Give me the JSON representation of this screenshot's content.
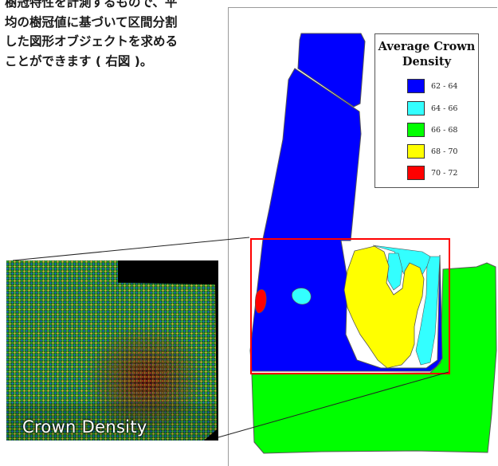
{
  "caption": {
    "lines": [
      "樹冠特性を計測するもので、平",
      "均の樹冠値に基づいて区間分割",
      "した図形オブジェクトを求める",
      "ことができます ( 右図 )。"
    ]
  },
  "legend": {
    "title_line1": "Average Crown",
    "title_line2": "Density",
    "items": [
      {
        "label": "62 - 64",
        "color": "#0000ff"
      },
      {
        "label": "64 - 66",
        "color": "#33ffff"
      },
      {
        "label": "66 - 68",
        "color": "#00ff00"
      },
      {
        "label": "68 - 70",
        "color": "#ffff00"
      },
      {
        "label": "70 - 72",
        "color": "#ff0000"
      }
    ]
  },
  "inset": {
    "label": "Crown Density"
  },
  "colors": {
    "zoom_box": "#ff0000",
    "border": "#555555",
    "leader_line": "#222222"
  }
}
